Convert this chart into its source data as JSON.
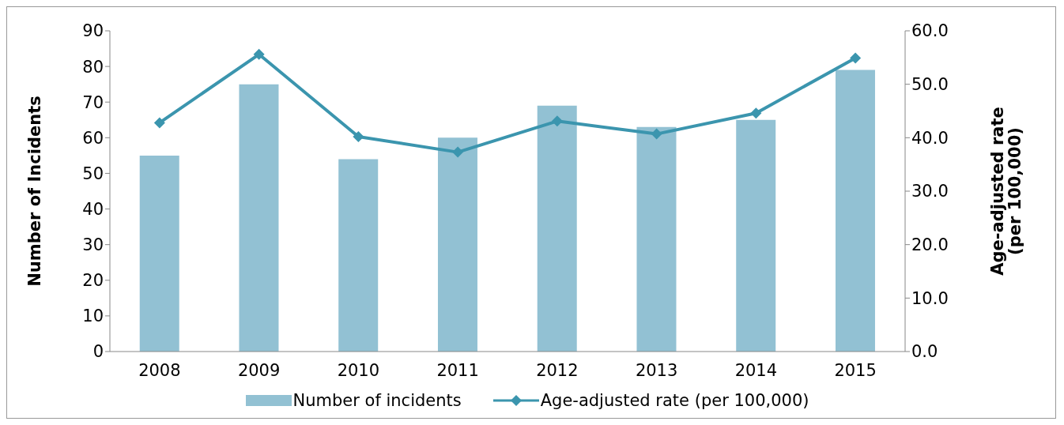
{
  "chart_data": {
    "type": "bar",
    "categories": [
      "2008",
      "2009",
      "2010",
      "2011",
      "2012",
      "2013",
      "2014",
      "2015"
    ],
    "ylabel": "Number of Incidents",
    "y2label": "Age-adjusted rate\n(per 100,000)",
    "series": [
      {
        "name": "Number of incidents",
        "color": "#92c1d3",
        "values": [
          55,
          75,
          54,
          60,
          69,
          63,
          65,
          79
        ]
      },
      {
        "name": "Age-adjusted rate (per 100,000)",
        "type": "line",
        "axis": "y2",
        "color": "#3b95ae",
        "marker": "diamond",
        "values": [
          42.8,
          55.6,
          40.2,
          37.3,
          43.1,
          40.7,
          44.6,
          54.9
        ]
      }
    ],
    "ylim": [
      0,
      90
    ],
    "yticks": [
      0,
      10,
      20,
      30,
      40,
      50,
      60,
      70,
      80,
      90
    ],
    "y2lim": [
      0,
      60
    ],
    "y2ticks": [
      {
        "value": 0,
        "label": "0.0"
      },
      {
        "value": 10,
        "label": "10.0"
      },
      {
        "value": 20,
        "label": "20.0"
      },
      {
        "value": 30,
        "label": "30.0"
      },
      {
        "value": 40,
        "label": "40.0"
      },
      {
        "value": 50,
        "label": "50.0"
      },
      {
        "value": 60,
        "label": "60.0"
      }
    ],
    "grid": false,
    "legend": "bottom"
  }
}
